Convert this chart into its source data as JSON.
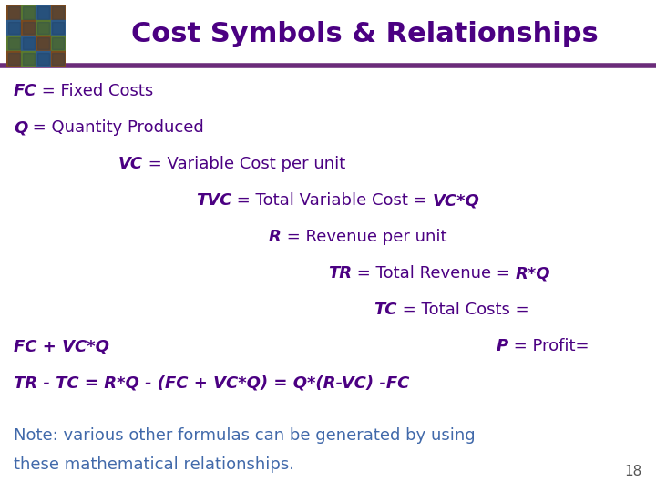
{
  "title": "Cost Symbols & Relationships",
  "title_color": "#4B0082",
  "title_fontsize": 22,
  "bg_color": "#FFFFFF",
  "header_line_color": "#6B2C7A",
  "body_color": "#4B0082",
  "body_fontsize": 13,
  "note_color": "#4169AA",
  "note_fontsize": 13,
  "page_number": "18",
  "note_line1": "Note: various other formulas can be generated by using",
  "note_line2": "these mathematical relationships."
}
